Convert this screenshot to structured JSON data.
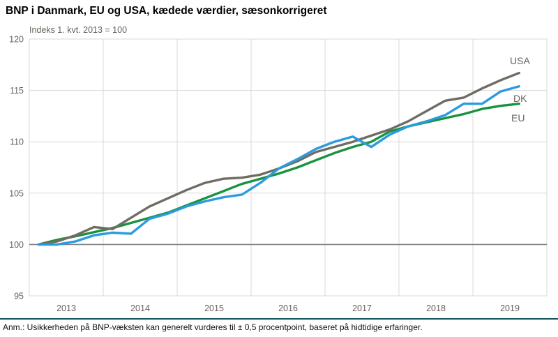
{
  "title": "BNP i Danmark, EU og USA, kædede værdier, sæsonkorrigeret",
  "subtitle": "Indeks 1. kvt. 2013 = 100",
  "footnote": "Anm.: Usikkerheden på BNP-væksten kan generelt vurderes til ± 0,5 procentpoint, baseret på hidtidige erfaringer.",
  "colors": {
    "usa_line": "#706c63",
    "dk_line": "#2b9be0",
    "eu_line": "#18923f",
    "gridline": "#d9d9d9",
    "baseline": "#7f7f7f",
    "axis_text": "#66625a",
    "footnote_rule": "#12525a"
  },
  "chart_data": {
    "type": "line",
    "title": "BNP i Danmark, EU og USA, kædede værdier, sæsonkorrigeret",
    "ylabel": "Indeks 1. kvt. 2013 = 100",
    "ylim": [
      95,
      120
    ],
    "y_ticks": [
      95,
      100,
      105,
      110,
      115,
      120
    ],
    "baseline_value": 100,
    "grid": true,
    "x_tick_labels": [
      "2013",
      "2014",
      "2015",
      "2016",
      "2017",
      "2018",
      "2019"
    ],
    "legend_position": "end-of-line labels (USA top, DK middle, EU bottom)",
    "quarters": [
      "2013Q1",
      "2013Q2",
      "2013Q3",
      "2013Q4",
      "2014Q1",
      "2014Q2",
      "2014Q3",
      "2014Q4",
      "2015Q1",
      "2015Q2",
      "2015Q3",
      "2015Q4",
      "2016Q1",
      "2016Q2",
      "2016Q3",
      "2016Q4",
      "2017Q1",
      "2017Q2",
      "2017Q3",
      "2017Q4",
      "2018Q1",
      "2018Q2",
      "2018Q3",
      "2018Q4",
      "2019Q1",
      "2019Q2",
      "2019Q3"
    ],
    "series": [
      {
        "name": "USA",
        "color": "#706c63",
        "values": [
          100.0,
          100.3,
          100.9,
          101.7,
          101.5,
          102.6,
          103.7,
          104.5,
          105.3,
          106.0,
          106.4,
          106.5,
          106.8,
          107.4,
          108.1,
          109.0,
          109.5,
          110.0,
          110.6,
          111.2,
          112.0,
          113.0,
          114.0,
          114.3,
          115.2,
          116.0,
          116.7
        ]
      },
      {
        "name": "DK",
        "color": "#2b9be0",
        "values": [
          100.0,
          100.0,
          100.3,
          100.9,
          101.15,
          101.05,
          102.5,
          103.0,
          103.7,
          104.2,
          104.6,
          104.85,
          106.0,
          107.4,
          108.3,
          109.3,
          110.0,
          110.5,
          109.5,
          110.7,
          111.5,
          112.0,
          112.6,
          113.7,
          113.7,
          114.9,
          115.4
        ]
      },
      {
        "name": "EU",
        "color": "#18923f",
        "values": [
          100.0,
          100.45,
          100.8,
          101.2,
          101.6,
          102.1,
          102.6,
          103.1,
          103.8,
          104.5,
          105.2,
          105.9,
          106.4,
          106.9,
          107.5,
          108.2,
          108.9,
          109.5,
          110.0,
          111.0,
          111.5,
          111.9,
          112.3,
          112.7,
          113.2,
          113.5,
          113.7
        ]
      }
    ]
  }
}
